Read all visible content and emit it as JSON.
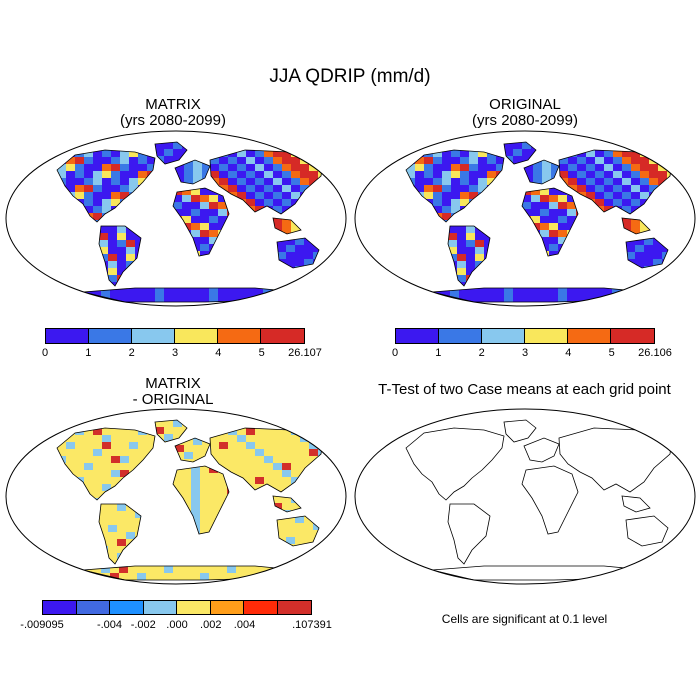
{
  "title": "JJA QDRIP (mm/d)",
  "panels": {
    "top_left": {
      "title_line1": "MATRIX",
      "title_line2": "(yrs 2080-2099)",
      "colorbar": {
        "colors": [
          "#3c18f0",
          "#3a78e6",
          "#88c8ee",
          "#f9e75c",
          "#f56a13",
          "#d62a26"
        ],
        "labels": [
          "0",
          "1",
          "2",
          "3",
          "4",
          "5",
          "26.107"
        ]
      }
    },
    "top_right": {
      "title_line1": "ORIGINAL",
      "title_line2": "(yrs 2080-2099)",
      "colorbar": {
        "colors": [
          "#3c18f0",
          "#3a78e6",
          "#88c8ee",
          "#f9e75c",
          "#f56a13",
          "#d62a26"
        ],
        "labels": [
          "0",
          "1",
          "2",
          "3",
          "4",
          "5",
          "26.106"
        ]
      }
    },
    "bottom_left": {
      "title_line1": "MATRIX",
      "title_line2": "- ORIGINAL",
      "colorbar": {
        "colors": [
          "#3c18f0",
          "#4169e1",
          "#1e90ff",
          "#88c8ee",
          "#fbe866",
          "#ff9e1a",
          "#ff2b08",
          "#d22f2a"
        ],
        "labels": [
          "-.009095",
          "",
          "-.004",
          "-.002",
          ".000",
          ".002",
          ".004",
          "",
          ".107391"
        ]
      }
    },
    "bottom_right": {
      "title": "T-Test of two Case means at each grid point",
      "note": "Cells are significant at 0.1 level"
    }
  }
}
